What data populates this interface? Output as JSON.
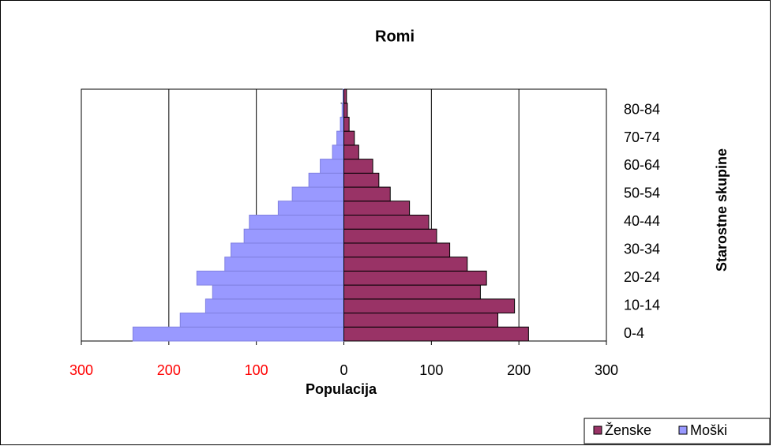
{
  "chart_data": {
    "type": "bar",
    "orientation": "horizontal",
    "title": "Romi",
    "xlabel": "Populacija",
    "ylabel": "Starostne skupine",
    "categories": [
      "0-4",
      null,
      "10-14",
      null,
      "20-24",
      null,
      "30-34",
      null,
      "40-44",
      null,
      "50-54",
      null,
      "60-64",
      null,
      "70-74",
      null,
      "80-84",
      null
    ],
    "series": [
      {
        "name": "Ženske",
        "color": "#993366",
        "values": [
          211,
          176,
          195,
          156,
          163,
          141,
          121,
          106,
          97,
          75,
          53,
          40,
          33,
          17,
          12,
          6,
          4,
          3
        ]
      },
      {
        "name": "Moški",
        "color": "#9999ff",
        "values": [
          -241,
          -187,
          -158,
          -150,
          -168,
          -136,
          -129,
          -114,
          -108,
          -75,
          -59,
          -40,
          -27,
          -13,
          -8,
          -4,
          -2,
          -1
        ]
      }
    ],
    "xlim": [
      -300,
      300
    ],
    "xticks": [
      {
        "value": -300,
        "label": "300"
      },
      {
        "value": -200,
        "label": "200"
      },
      {
        "value": -100,
        "label": "100"
      },
      0,
      100,
      200,
      300
    ],
    "negative_tick_color": "#ff0000",
    "grid": true,
    "legend": "bottom-right"
  }
}
